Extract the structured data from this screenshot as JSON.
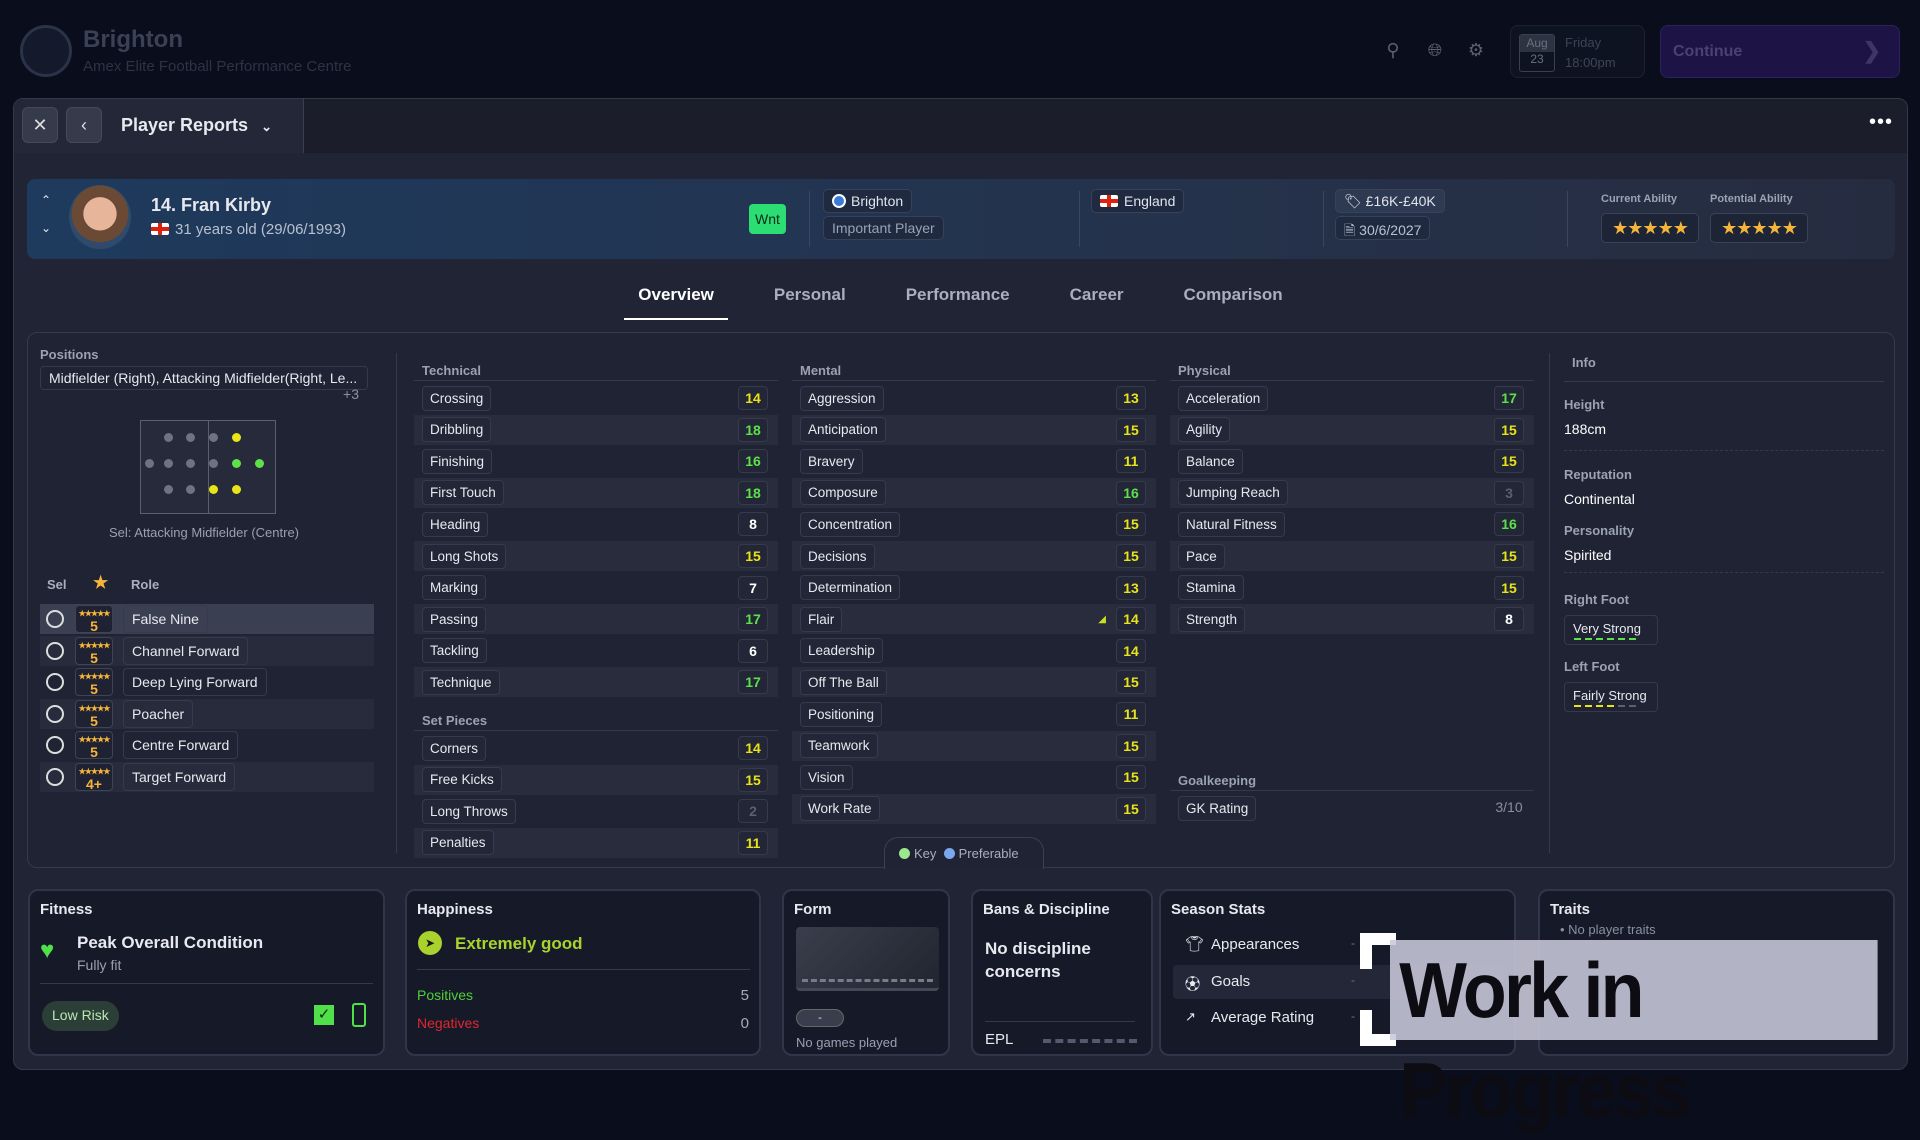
{
  "topbar": {
    "club": "Brighton",
    "venue": "Amex Elite Football Performance Centre",
    "date_month": "Aug",
    "date_day": "23",
    "weekday": "Friday",
    "time": "18:00pm",
    "continue_label": "Continue"
  },
  "window": {
    "title": "Player Reports"
  },
  "player": {
    "name": "14. Fran Kirby",
    "age": "31 years old (29/06/1993)",
    "badge": "Wnt",
    "club": "Brighton",
    "status": "Important Player",
    "nation": "England",
    "value": "£16K-£40K",
    "contract": "30/6/2027",
    "current_ability_label": "Current Ability",
    "potential_ability_label": "Potential Ability",
    "current_ability_stars": 5,
    "potential_ability_stars": 5,
    "stars_glyph": "★★★★★"
  },
  "tabs": [
    "Overview",
    "Personal",
    "Performance",
    "Career",
    "Comparison"
  ],
  "positions": {
    "title": "Positions",
    "summary": "Midfielder (Right), Attacking Midfielder(Right, Le...",
    "more": "+3",
    "selected": "Sel: Attacking Midfielder (Centre)",
    "roles_header": {
      "sel": "Sel",
      "star": "★",
      "role": "Role"
    },
    "roles": [
      {
        "name": "False Nine",
        "rating": "5"
      },
      {
        "name": "Channel Forward",
        "rating": "5"
      },
      {
        "name": "Deep Lying Forward",
        "rating": "5"
      },
      {
        "name": "Poacher",
        "rating": "5"
      },
      {
        "name": "Centre Forward",
        "rating": "5"
      },
      {
        "name": "Target Forward",
        "rating": "4+"
      }
    ]
  },
  "technical": {
    "title": "Technical",
    "rows": [
      [
        "Crossing",
        14
      ],
      [
        "Dribbling",
        18
      ],
      [
        "Finishing",
        16
      ],
      [
        "First Touch",
        18
      ],
      [
        "Heading",
        8
      ],
      [
        "Long Shots",
        15
      ],
      [
        "Marking",
        7
      ],
      [
        "Passing",
        17
      ],
      [
        "Tackling",
        6
      ],
      [
        "Technique",
        17
      ]
    ]
  },
  "set_pieces": {
    "title": "Set Pieces",
    "rows": [
      [
        "Corners",
        14
      ],
      [
        "Free Kicks",
        15
      ],
      [
        "Long Throws",
        2
      ],
      [
        "Penalties",
        11
      ]
    ]
  },
  "mental": {
    "title": "Mental",
    "rows": [
      [
        "Aggression",
        13
      ],
      [
        "Anticipation",
        15
      ],
      [
        "Bravery",
        11
      ],
      [
        "Composure",
        16
      ],
      [
        "Concentration",
        15
      ],
      [
        "Decisions",
        15
      ],
      [
        "Determination",
        13
      ],
      [
        "Flair",
        14,
        "up"
      ],
      [
        "Leadership",
        14
      ],
      [
        "Off The Ball",
        15
      ],
      [
        "Positioning",
        11
      ],
      [
        "Teamwork",
        15
      ],
      [
        "Vision",
        15
      ],
      [
        "Work Rate",
        15
      ]
    ]
  },
  "physical": {
    "title": "Physical",
    "rows": [
      [
        "Acceleration",
        17
      ],
      [
        "Agility",
        15
      ],
      [
        "Balance",
        15
      ],
      [
        "Jumping Reach",
        3
      ],
      [
        "Natural Fitness",
        16
      ],
      [
        "Pace",
        15
      ],
      [
        "Stamina",
        15
      ],
      [
        "Strength",
        8
      ]
    ]
  },
  "goalkeeping": {
    "title": "Goalkeeping",
    "rows": [
      [
        "GK Rating",
        "3/10"
      ]
    ]
  },
  "legend": {
    "key": "Key",
    "preferable": "Preferable",
    "key_color": "#9be88f",
    "preferable_color": "#7aa8f0"
  },
  "info": {
    "title": "Info",
    "height_label": "Height",
    "height": "188cm",
    "reputation_label": "Reputation",
    "reputation": "Continental",
    "personality_label": "Personality",
    "personality": "Spirited",
    "right_foot_label": "Right Foot",
    "right_foot": "Very Strong",
    "right_foot_level": 6,
    "left_foot_label": "Left Foot",
    "left_foot": "Fairly Strong",
    "left_foot_level": 4
  },
  "fitness": {
    "title": "Fitness",
    "condition": "Peak Overall Condition",
    "state": "Fully fit",
    "risk": "Low Risk"
  },
  "happiness": {
    "title": "Happiness",
    "status": "Extremely good",
    "positives_label": "Positives",
    "positives": "5",
    "negatives_label": "Negatives",
    "negatives": "0"
  },
  "form": {
    "title": "Form",
    "pill": "-",
    "note": "No games played"
  },
  "bans": {
    "title": "Bans & Discipline",
    "status": "No discipline concerns",
    "competition": "EPL"
  },
  "season": {
    "title": "Season Stats",
    "rows": [
      {
        "label": "Appearances",
        "value": "-"
      },
      {
        "label": "Goals",
        "value": "-"
      },
      {
        "label": "Average Rating",
        "value": "-"
      }
    ]
  },
  "traits": {
    "title": "Traits",
    "empty": "No player traits"
  },
  "overlay": {
    "text": "Work in Progress"
  },
  "colors": {
    "high": "#5ee04a",
    "mid": "#e8e417",
    "low": "#ffffff",
    "poor": "#5a6070",
    "accent": "#2bdd72"
  }
}
